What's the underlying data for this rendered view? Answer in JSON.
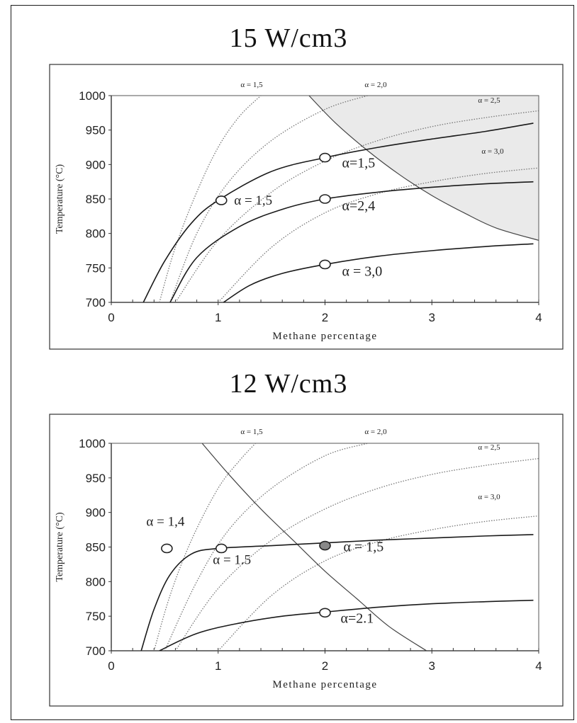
{
  "chart_data": [
    {
      "type": "line",
      "title": "15 W/cm3",
      "xlabel": "Methane percentage",
      "ylabel": "Temperature (°C)",
      "xlim": [
        0,
        4
      ],
      "ylim": [
        700,
        1000
      ],
      "xticks": [
        "0",
        "1",
        "2",
        "3",
        "4"
      ],
      "yticks": [
        "700",
        "750",
        "800",
        "850",
        "900",
        "950",
        "1000"
      ],
      "grid": false,
      "dotted_curves": [
        {
          "label": "α = 1,5",
          "points": [
            [
              0.45,
              700
            ],
            [
              0.6,
              780
            ],
            [
              0.8,
              860
            ],
            [
              1.0,
              925
            ],
            [
              1.2,
              970
            ],
            [
              1.4,
              1000
            ]
          ]
        },
        {
          "label": "α = 2,0",
          "points": [
            [
              0.55,
              700
            ],
            [
              0.8,
              800
            ],
            [
              1.1,
              875
            ],
            [
              1.5,
              935
            ],
            [
              2.0,
              980
            ],
            [
              2.4,
              1000
            ]
          ]
        },
        {
          "label": "α = 2,5",
          "points": [
            [
              0.6,
              700
            ],
            [
              1.0,
              790
            ],
            [
              1.5,
              860
            ],
            [
              2.0,
              905
            ],
            [
              2.5,
              935
            ],
            [
              3.0,
              955
            ],
            [
              3.5,
              968
            ],
            [
              4.0,
              978
            ]
          ]
        },
        {
          "label": "α = 3,0",
          "points": [
            [
              1.0,
              700
            ],
            [
              1.5,
              780
            ],
            [
              2.0,
              830
            ],
            [
              2.5,
              858
            ],
            [
              3.0,
              875
            ],
            [
              3.5,
              887
            ],
            [
              4.0,
              895
            ]
          ]
        }
      ],
      "solid_curves": [
        {
          "label": "α = 1,5",
          "points": [
            [
              0.3,
              700
            ],
            [
              0.5,
              760
            ],
            [
              0.75,
              815
            ],
            [
              1.0,
              848
            ],
            [
              1.5,
              890
            ],
            [
              2.0,
              910
            ],
            [
              2.5,
              925
            ],
            [
              3.0,
              937
            ],
            [
              3.5,
              948
            ],
            [
              3.95,
              960
            ]
          ]
        },
        {
          "label": "α = 2,4",
          "points": [
            [
              0.55,
              700
            ],
            [
              0.8,
              765
            ],
            [
              1.2,
              810
            ],
            [
              1.6,
              835
            ],
            [
              2.0,
              850
            ],
            [
              2.5,
              860
            ],
            [
              3.0,
              867
            ],
            [
              3.5,
              872
            ],
            [
              3.95,
              875
            ]
          ]
        },
        {
          "label": "α = 3,0",
          "points": [
            [
              1.05,
              700
            ],
            [
              1.3,
              725
            ],
            [
              1.6,
              742
            ],
            [
              2.0,
              755
            ],
            [
              2.5,
              767
            ],
            [
              3.0,
              775
            ],
            [
              3.5,
              781
            ],
            [
              3.95,
              785
            ]
          ]
        }
      ],
      "boundary_curve": {
        "points": [
          [
            1.85,
            1000
          ],
          [
            2.1,
            960
          ],
          [
            2.4,
            920
          ],
          [
            2.7,
            885
          ],
          [
            3.0,
            855
          ],
          [
            3.3,
            830
          ],
          [
            3.6,
            808
          ],
          [
            4.0,
            790
          ]
        ]
      },
      "shaded_region": "above boundary curve (right side)",
      "operating_points": [
        {
          "x": 1.03,
          "y": 848,
          "label": "α  = 1,5"
        },
        {
          "x": 2.0,
          "y": 910,
          "label": "α=1,5"
        },
        {
          "x": 2.0,
          "y": 850,
          "label": "α=2,4"
        },
        {
          "x": 2.0,
          "y": 755,
          "label": "α = 3,0"
        }
      ]
    },
    {
      "type": "line",
      "title": "12 W/cm3",
      "xlabel": "Methane percentage",
      "ylabel": "Temperature (°C)",
      "xlim": [
        0,
        4
      ],
      "ylim": [
        700,
        1000
      ],
      "xticks": [
        "0",
        "1",
        "2",
        "3",
        "4"
      ],
      "yticks": [
        "700",
        "750",
        "800",
        "850",
        "900",
        "950",
        "1000"
      ],
      "grid": false,
      "dotted_curves": [
        {
          "label": "α = 1,5",
          "points": [
            [
              0.4,
              700
            ],
            [
              0.55,
              780
            ],
            [
              0.75,
              860
            ],
            [
              1.0,
              935
            ],
            [
              1.2,
              975
            ],
            [
              1.35,
              1000
            ]
          ]
        },
        {
          "label": "α = 2,0",
          "points": [
            [
              0.5,
              700
            ],
            [
              0.8,
              800
            ],
            [
              1.1,
              875
            ],
            [
              1.5,
              935
            ],
            [
              2.0,
              982
            ],
            [
              2.4,
              1000
            ]
          ]
        },
        {
          "label": "α = 2,5",
          "points": [
            [
              0.6,
              700
            ],
            [
              1.0,
              790
            ],
            [
              1.5,
              860
            ],
            [
              2.0,
              905
            ],
            [
              2.5,
              935
            ],
            [
              3.0,
              955
            ],
            [
              3.5,
              968
            ],
            [
              4.0,
              978
            ]
          ]
        },
        {
          "label": "α = 3,0",
          "points": [
            [
              1.0,
              700
            ],
            [
              1.5,
              780
            ],
            [
              2.0,
              830
            ],
            [
              2.5,
              858
            ],
            [
              3.0,
              875
            ],
            [
              3.5,
              887
            ],
            [
              4.0,
              895
            ]
          ]
        }
      ],
      "solid_curves": [
        {
          "label": "α = 1.5",
          "points": [
            [
              0.28,
              700
            ],
            [
              0.4,
              760
            ],
            [
              0.55,
              810
            ],
            [
              0.75,
              840
            ],
            [
              1.0,
              848
            ],
            [
              1.5,
              852
            ],
            [
              2.0,
              856
            ],
            [
              2.5,
              860
            ],
            [
              3.0,
              863
            ],
            [
              3.5,
              866
            ],
            [
              3.95,
              868
            ]
          ]
        },
        {
          "label": "α=2.1",
          "points": [
            [
              0.45,
              700
            ],
            [
              0.8,
              725
            ],
            [
              1.2,
              740
            ],
            [
              1.6,
              750
            ],
            [
              2.0,
              756
            ],
            [
              2.5,
              763
            ],
            [
              3.0,
              768
            ],
            [
              3.5,
              771
            ],
            [
              3.95,
              773
            ]
          ]
        }
      ],
      "boundary_curve": {
        "points": [
          [
            0.85,
            1000
          ],
          [
            1.1,
            955
          ],
          [
            1.4,
            905
          ],
          [
            1.7,
            860
          ],
          [
            2.0,
            815
          ],
          [
            2.3,
            775
          ],
          [
            2.6,
            735
          ],
          [
            2.95,
            700
          ]
        ]
      },
      "operating_points": [
        {
          "x": 0.52,
          "y": 848,
          "label": "α = 1,4",
          "filled": false
        },
        {
          "x": 1.03,
          "y": 848,
          "label": "α  = 1.5",
          "filled": false
        },
        {
          "x": 2.0,
          "y": 852,
          "label": "α  = 1,5",
          "filled": true
        },
        {
          "x": 2.0,
          "y": 755,
          "label": "α=2.1",
          "filled": false
        }
      ]
    }
  ]
}
